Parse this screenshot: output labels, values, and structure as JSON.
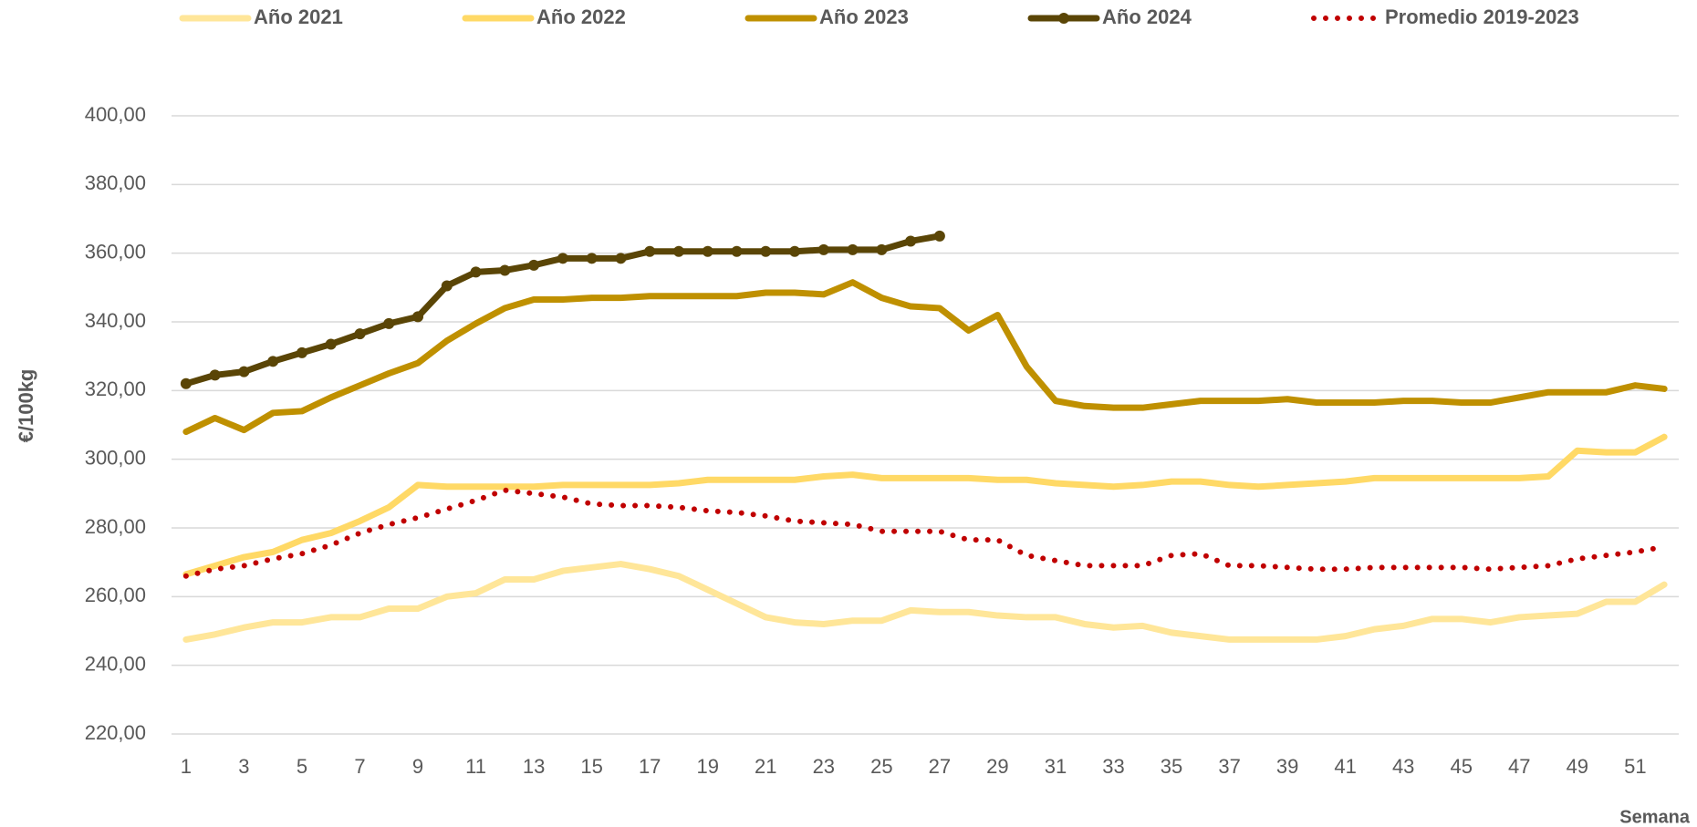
{
  "chart_data": {
    "type": "line",
    "y_label": "€/100kg",
    "x_label": "Semana",
    "categories": [
      "1",
      null,
      "3",
      null,
      "5",
      null,
      "7",
      null,
      "9",
      null,
      "11",
      null,
      "13",
      null,
      "15",
      null,
      "17",
      null,
      "19",
      null,
      "21",
      null,
      "23",
      null,
      "25",
      null,
      "27",
      null,
      "29",
      null,
      "31",
      null,
      "33",
      null,
      "35",
      null,
      "37",
      null,
      "39",
      null,
      "41",
      null,
      "43",
      null,
      "45",
      null,
      "47",
      null,
      "49",
      null,
      "51",
      null
    ],
    "ylim": [
      220,
      400
    ],
    "yticks": [
      {
        "value": 220,
        "label": "220,00"
      },
      {
        "value": 240,
        "label": "240,00"
      },
      {
        "value": 260,
        "label": "260,00"
      },
      {
        "value": 280,
        "label": "280,00"
      },
      {
        "value": 300,
        "label": "300,00"
      },
      {
        "value": 320,
        "label": "320,00"
      },
      {
        "value": 340,
        "label": "340,00"
      },
      {
        "value": 360,
        "label": "360,00"
      },
      {
        "value": 380,
        "label": "380,00"
      },
      {
        "value": 400,
        "label": "400,00"
      }
    ],
    "grid": true,
    "legend": "top",
    "series": [
      {
        "name": "Año 2021",
        "color": "#ffe699",
        "values": [
          247.5,
          249,
          251,
          252.5,
          252.5,
          254,
          254,
          256.5,
          256.5,
          260,
          261,
          265,
          265,
          267.5,
          268.5,
          269.5,
          268,
          266,
          262,
          258,
          254,
          252.5,
          252,
          253,
          253,
          256,
          255.5,
          255.5,
          254.5,
          254,
          254,
          252,
          251,
          251.5,
          249.5,
          248.5,
          247.5,
          247.5,
          247.5,
          247.5,
          248.5,
          250.5,
          251.5,
          253.5,
          253.5,
          252.5,
          254,
          254.5,
          255,
          258.5,
          258.5,
          263.5
        ]
      },
      {
        "name": "Año 2022",
        "color": "#ffd966",
        "values": [
          266.5,
          269,
          271.5,
          273,
          276.5,
          278.5,
          282,
          286,
          292.5,
          292,
          292,
          292,
          292,
          292.5,
          292.5,
          292.5,
          292.5,
          293,
          294,
          294,
          294,
          294,
          295,
          295.5,
          294.5,
          294.5,
          294.5,
          294.5,
          294,
          294,
          293,
          292.5,
          292,
          292.5,
          293.5,
          293.5,
          292.5,
          292,
          292.5,
          293,
          293.5,
          294.5,
          294.5,
          294.5,
          294.5,
          294.5,
          294.5,
          295,
          302.5,
          302,
          302,
          306.5
        ]
      },
      {
        "name": "Año 2023",
        "color": "#bf9000",
        "values": [
          308,
          312,
          308.5,
          313.5,
          314,
          318,
          321.5,
          325,
          328,
          334.5,
          339.5,
          344,
          346.5,
          346.5,
          347,
          347,
          347.5,
          347.5,
          347.5,
          347.5,
          348.5,
          348.5,
          348,
          351.5,
          347,
          344.5,
          344,
          337.5,
          342,
          327,
          317,
          315.5,
          315,
          315,
          316,
          317,
          317,
          317,
          317.5,
          316.5,
          316.5,
          316.5,
          317,
          317,
          316.5,
          316.5,
          318,
          319.5,
          319.5,
          319.5,
          321.5,
          320.5
        ]
      },
      {
        "name": "Año 2024",
        "color": "#5a4506",
        "markers": true,
        "values": [
          322,
          324.5,
          325.5,
          328.5,
          331,
          333.5,
          336.5,
          339.5,
          341.5,
          350.5,
          354.5,
          355,
          356.5,
          358.5,
          358.5,
          358.5,
          360.5,
          360.5,
          360.5,
          360.5,
          360.5,
          360.5,
          361,
          361,
          361,
          363.5,
          365,
          null,
          null,
          null,
          null,
          null,
          null,
          null,
          null,
          null,
          null,
          null,
          null,
          null,
          null,
          null,
          null,
          null,
          null,
          null,
          null,
          null,
          null,
          null,
          null,
          null
        ]
      },
      {
        "name": "Promedio 2019-2023",
        "color": "#c00000",
        "dash": "dotted",
        "values": [
          266,
          268,
          269,
          271,
          272.5,
          275,
          278.5,
          281,
          283,
          285.5,
          288,
          291,
          290,
          289,
          287,
          286.5,
          286.5,
          286,
          285,
          284.5,
          283.5,
          282,
          281.5,
          281,
          279,
          279,
          279,
          276.5,
          276.5,
          272,
          270.5,
          269,
          269,
          269,
          272,
          272.5,
          269,
          269,
          268.5,
          268,
          268,
          268.5,
          268.5,
          268.5,
          268.5,
          268,
          268.5,
          269,
          271,
          272,
          273,
          274.5
        ]
      }
    ]
  }
}
